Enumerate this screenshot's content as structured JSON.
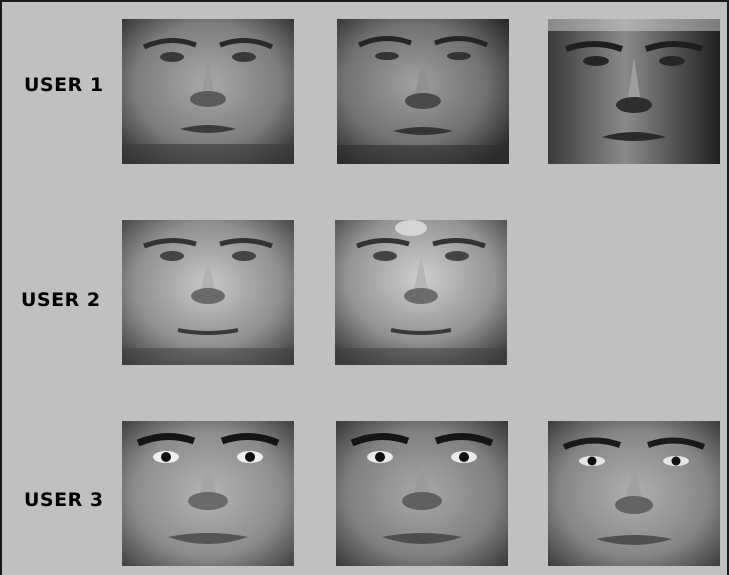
{
  "users": [
    {
      "label": "USER 1",
      "faces": [
        "face-1a",
        "face-1b",
        "face-1c"
      ]
    },
    {
      "label": "USER 2",
      "faces": [
        "face-2a",
        "face-2b"
      ]
    },
    {
      "label": "USER 3",
      "faces": [
        "face-3a",
        "face-3b",
        "face-3c"
      ]
    }
  ],
  "colors": {
    "panel_background": "#c0c0c0",
    "border": "#1a1a1a",
    "label_text": "#000000"
  }
}
